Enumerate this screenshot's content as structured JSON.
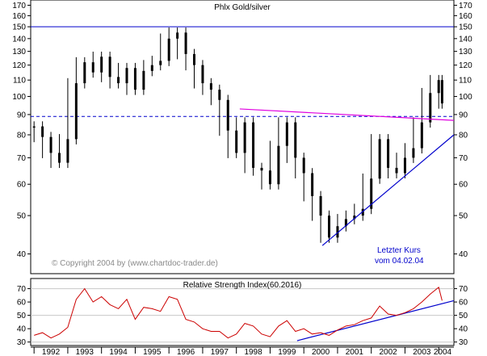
{
  "chart_data": [
    {
      "type": "candlestick",
      "title": "Phlx Gold/silver",
      "annotations": [
        "Letzter Kurs",
        "vom 04.02.04"
      ],
      "copyright": "© Copyright 2004 by (www.chartdoc-trader.de)",
      "scale": "log",
      "ylim": [
        36,
        172
      ],
      "y_ticks": [
        40,
        50,
        60,
        70,
        80,
        90,
        100,
        110,
        120,
        130,
        140,
        150,
        160,
        170
      ],
      "x_ticks": [
        "1992",
        "1993",
        "1994",
        "1995",
        "1996",
        "1997",
        "1998",
        "1999",
        "2000",
        "2001",
        "2002",
        "2003",
        "2004"
      ],
      "xlim": [
        1991.9,
        2004.45
      ],
      "horizontal_lines": [
        {
          "y": 150,
          "style": "solid",
          "color": "#0000cc"
        },
        {
          "y": 89,
          "style": "dashed",
          "color": "#0000cc"
        }
      ],
      "trendlines": [
        {
          "from": [
            1998.1,
            93
          ],
          "to": [
            2004.45,
            87
          ],
          "color": "#e000e0"
        },
        {
          "from": [
            2000.55,
            42
          ],
          "to": [
            2004.45,
            80
          ],
          "color": "#0000cc"
        }
      ],
      "series": [
        {
          "name": "",
          "x": [
            1992.0,
            1992.25,
            1992.5,
            1992.75,
            1993.0,
            1993.25,
            1993.5,
            1993.75,
            1994.0,
            1994.25,
            1994.5,
            1994.75,
            1995.0,
            1995.25,
            1995.5,
            1995.75,
            1996.0,
            1996.25,
            1996.5,
            1996.75,
            1997.0,
            1997.25,
            1997.5,
            1997.75,
            1998.0,
            1998.25,
            1998.5,
            1998.75,
            1999.0,
            1999.25,
            1999.5,
            1999.75,
            2000.0,
            2000.25,
            2000.5,
            2000.75,
            2001.0,
            2001.25,
            2001.5,
            2001.75,
            2002.0,
            2002.25,
            2002.5,
            2002.75,
            2003.0,
            2003.25,
            2003.5,
            2003.75,
            2004.0,
            2004.1
          ],
          "y": [
            84,
            79,
            72,
            68,
            78,
            108,
            122,
            115,
            126,
            112,
            108,
            118,
            104,
            116,
            120,
            123,
            140,
            145,
            128,
            120,
            108,
            104,
            98,
            82,
            72,
            86,
            66,
            65,
            60,
            75,
            86,
            70,
            64,
            56,
            50,
            44,
            47,
            49,
            50,
            52,
            62,
            78,
            66,
            64,
            70,
            74,
            86,
            102,
            110,
            96
          ]
        }
      ]
    },
    {
      "type": "line",
      "title": "Relative Strength Index(60.2016)",
      "ylim": [
        28,
        77
      ],
      "y_ticks": [
        30,
        40,
        50,
        60,
        70
      ],
      "horizontal_lines": [
        {
          "y": 70
        },
        {
          "y": 50
        },
        {
          "y": 30
        }
      ],
      "trendlines": [
        {
          "from": [
            1999.8,
            31
          ],
          "to": [
            2004.45,
            61
          ],
          "color": "#0000cc"
        }
      ],
      "series": [
        {
          "name": "",
          "color": "#cc0000",
          "x": [
            1992.0,
            1992.25,
            1992.5,
            1992.75,
            1993.0,
            1993.25,
            1993.5,
            1993.75,
            1994.0,
            1994.25,
            1994.5,
            1994.75,
            1995.0,
            1995.25,
            1995.5,
            1995.75,
            1996.0,
            1996.25,
            1996.5,
            1996.75,
            1997.0,
            1997.25,
            1997.5,
            1997.75,
            1998.0,
            1998.25,
            1998.5,
            1998.75,
            1999.0,
            1999.25,
            1999.5,
            1999.75,
            2000.0,
            2000.25,
            2000.5,
            2000.75,
            2001.0,
            2001.25,
            2001.5,
            2001.75,
            2002.0,
            2002.25,
            2002.5,
            2002.75,
            2003.0,
            2003.25,
            2003.5,
            2003.75,
            2004.0,
            2004.1
          ],
          "y": [
            35,
            37,
            33,
            36,
            41,
            62,
            70,
            60,
            64,
            58,
            55,
            62,
            47,
            56,
            55,
            53,
            64,
            62,
            47,
            45,
            40,
            38,
            38,
            33,
            36,
            44,
            42,
            36,
            34,
            42,
            46,
            38,
            40,
            36,
            37,
            35,
            39,
            42,
            43,
            46,
            48,
            57,
            51,
            50,
            52,
            55,
            60,
            66,
            71,
            61
          ]
        }
      ]
    }
  ]
}
